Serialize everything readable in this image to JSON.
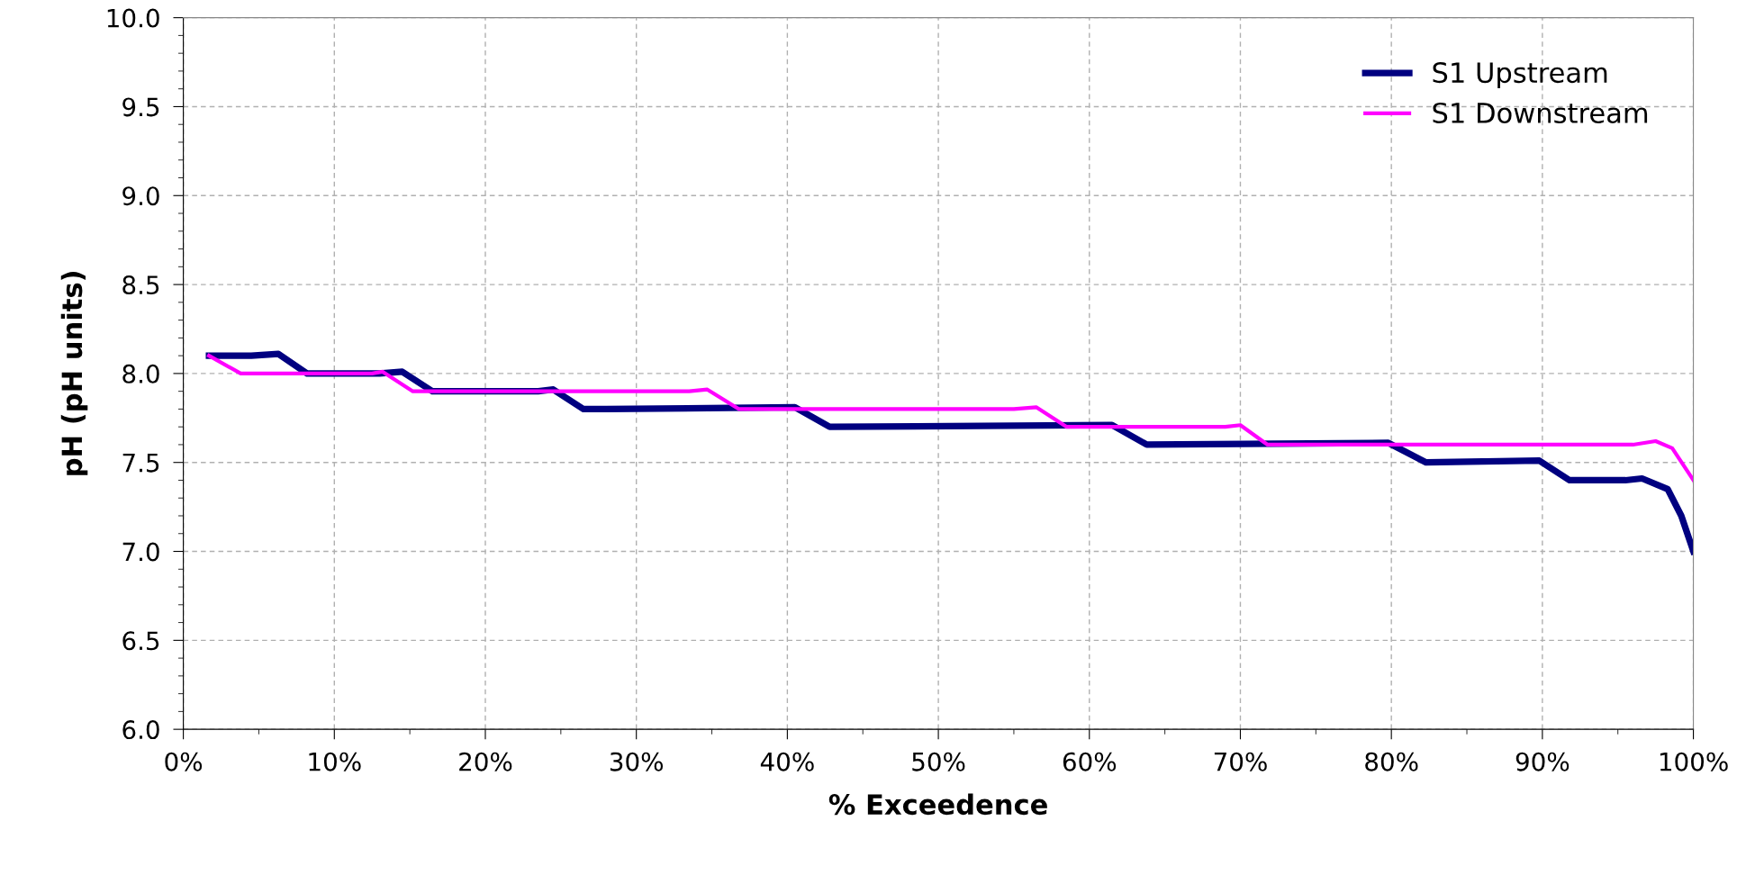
{
  "chart_data": {
    "type": "line",
    "xlabel": "% Exceedence",
    "ylabel": "pH (pH units)",
    "series": [
      {
        "name": "S1 Upstream",
        "color": "#000080",
        "x": [
          1.7,
          4.5,
          6.3,
          8.2,
          13.0,
          14.5,
          16.5,
          23.5,
          24.5,
          26.5,
          28.0,
          40.5,
          42.8,
          61.5,
          63.8,
          79.8,
          82.3,
          89.8,
          91.8,
          95.5,
          96.6,
          98.3,
          99.2,
          100.0
        ],
        "values": [
          8.1,
          8.1,
          8.11,
          8.0,
          8.0,
          8.01,
          7.9,
          7.9,
          7.91,
          7.8,
          7.8,
          7.81,
          7.7,
          7.71,
          7.6,
          7.61,
          7.5,
          7.51,
          7.4,
          7.4,
          7.41,
          7.35,
          7.2,
          7.0
        ]
      },
      {
        "name": "S1 Downstream",
        "color": "#ff00ff",
        "x": [
          1.7,
          3.8,
          5.5,
          12.5,
          13.2,
          15.2,
          33.5,
          34.7,
          36.8,
          40.0,
          55.0,
          56.5,
          58.5,
          69.0,
          70.0,
          71.8,
          96.0,
          97.5,
          98.6,
          100.0
        ],
        "values": [
          8.1,
          8.0,
          8.0,
          8.0,
          8.01,
          7.9,
          7.9,
          7.91,
          7.8,
          7.8,
          7.8,
          7.81,
          7.7,
          7.7,
          7.71,
          7.6,
          7.6,
          7.62,
          7.58,
          7.4
        ]
      }
    ],
    "xlim": [
      0,
      100
    ],
    "xticks": [
      {
        "value": 0,
        "label": "0%"
      },
      {
        "value": 10,
        "label": "10%"
      },
      {
        "value": 20,
        "label": "20%"
      },
      {
        "value": 30,
        "label": "30%"
      },
      {
        "value": 40,
        "label": "40%"
      },
      {
        "value": 50,
        "label": "50%"
      },
      {
        "value": 60,
        "label": "60%"
      },
      {
        "value": 70,
        "label": "70%"
      },
      {
        "value": 80,
        "label": "80%"
      },
      {
        "value": 90,
        "label": "90%"
      },
      {
        "value": 100,
        "label": "100%"
      }
    ],
    "ylim": [
      6.0,
      10.0
    ],
    "yticks": [
      {
        "value": 6,
        "label": "6.0"
      },
      6.5,
      {
        "value": 7,
        "label": "7.0"
      },
      7.5,
      {
        "value": 8,
        "label": "8.0"
      },
      8.5,
      {
        "value": 9,
        "label": "9.0"
      },
      9.5,
      {
        "value": 10,
        "label": "10.0"
      }
    ],
    "grid": true,
    "legend": "top right",
    "line_style": "solid",
    "marker": "none"
  }
}
